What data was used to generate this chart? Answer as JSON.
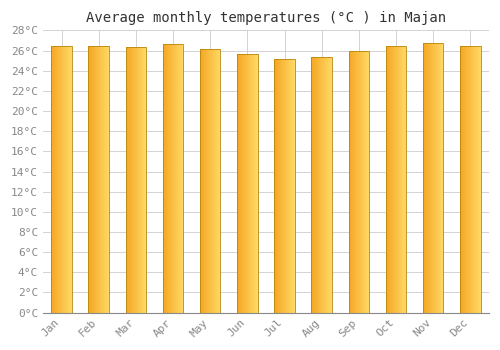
{
  "title": "Average monthly temperatures (°C ) in Majan",
  "months": [
    "Jan",
    "Feb",
    "Mar",
    "Apr",
    "May",
    "Jun",
    "Jul",
    "Aug",
    "Sep",
    "Oct",
    "Nov",
    "Dec"
  ],
  "temperatures": [
    26.5,
    26.5,
    26.4,
    26.7,
    26.2,
    25.7,
    25.2,
    25.4,
    26.0,
    26.5,
    26.8,
    26.5
  ],
  "ylim": [
    0,
    28
  ],
  "yticks": [
    0,
    2,
    4,
    6,
    8,
    10,
    12,
    14,
    16,
    18,
    20,
    22,
    24,
    26,
    28
  ],
  "bar_color_left": "#F5A623",
  "bar_color_right": "#FFD966",
  "bar_color_center": "#FFBE33",
  "bar_edge_color": "#B8860B",
  "background_color": "#ffffff",
  "grid_color": "#cccccc",
  "title_fontsize": 10,
  "tick_fontsize": 8,
  "tick_color": "#888888",
  "bar_width": 0.55
}
